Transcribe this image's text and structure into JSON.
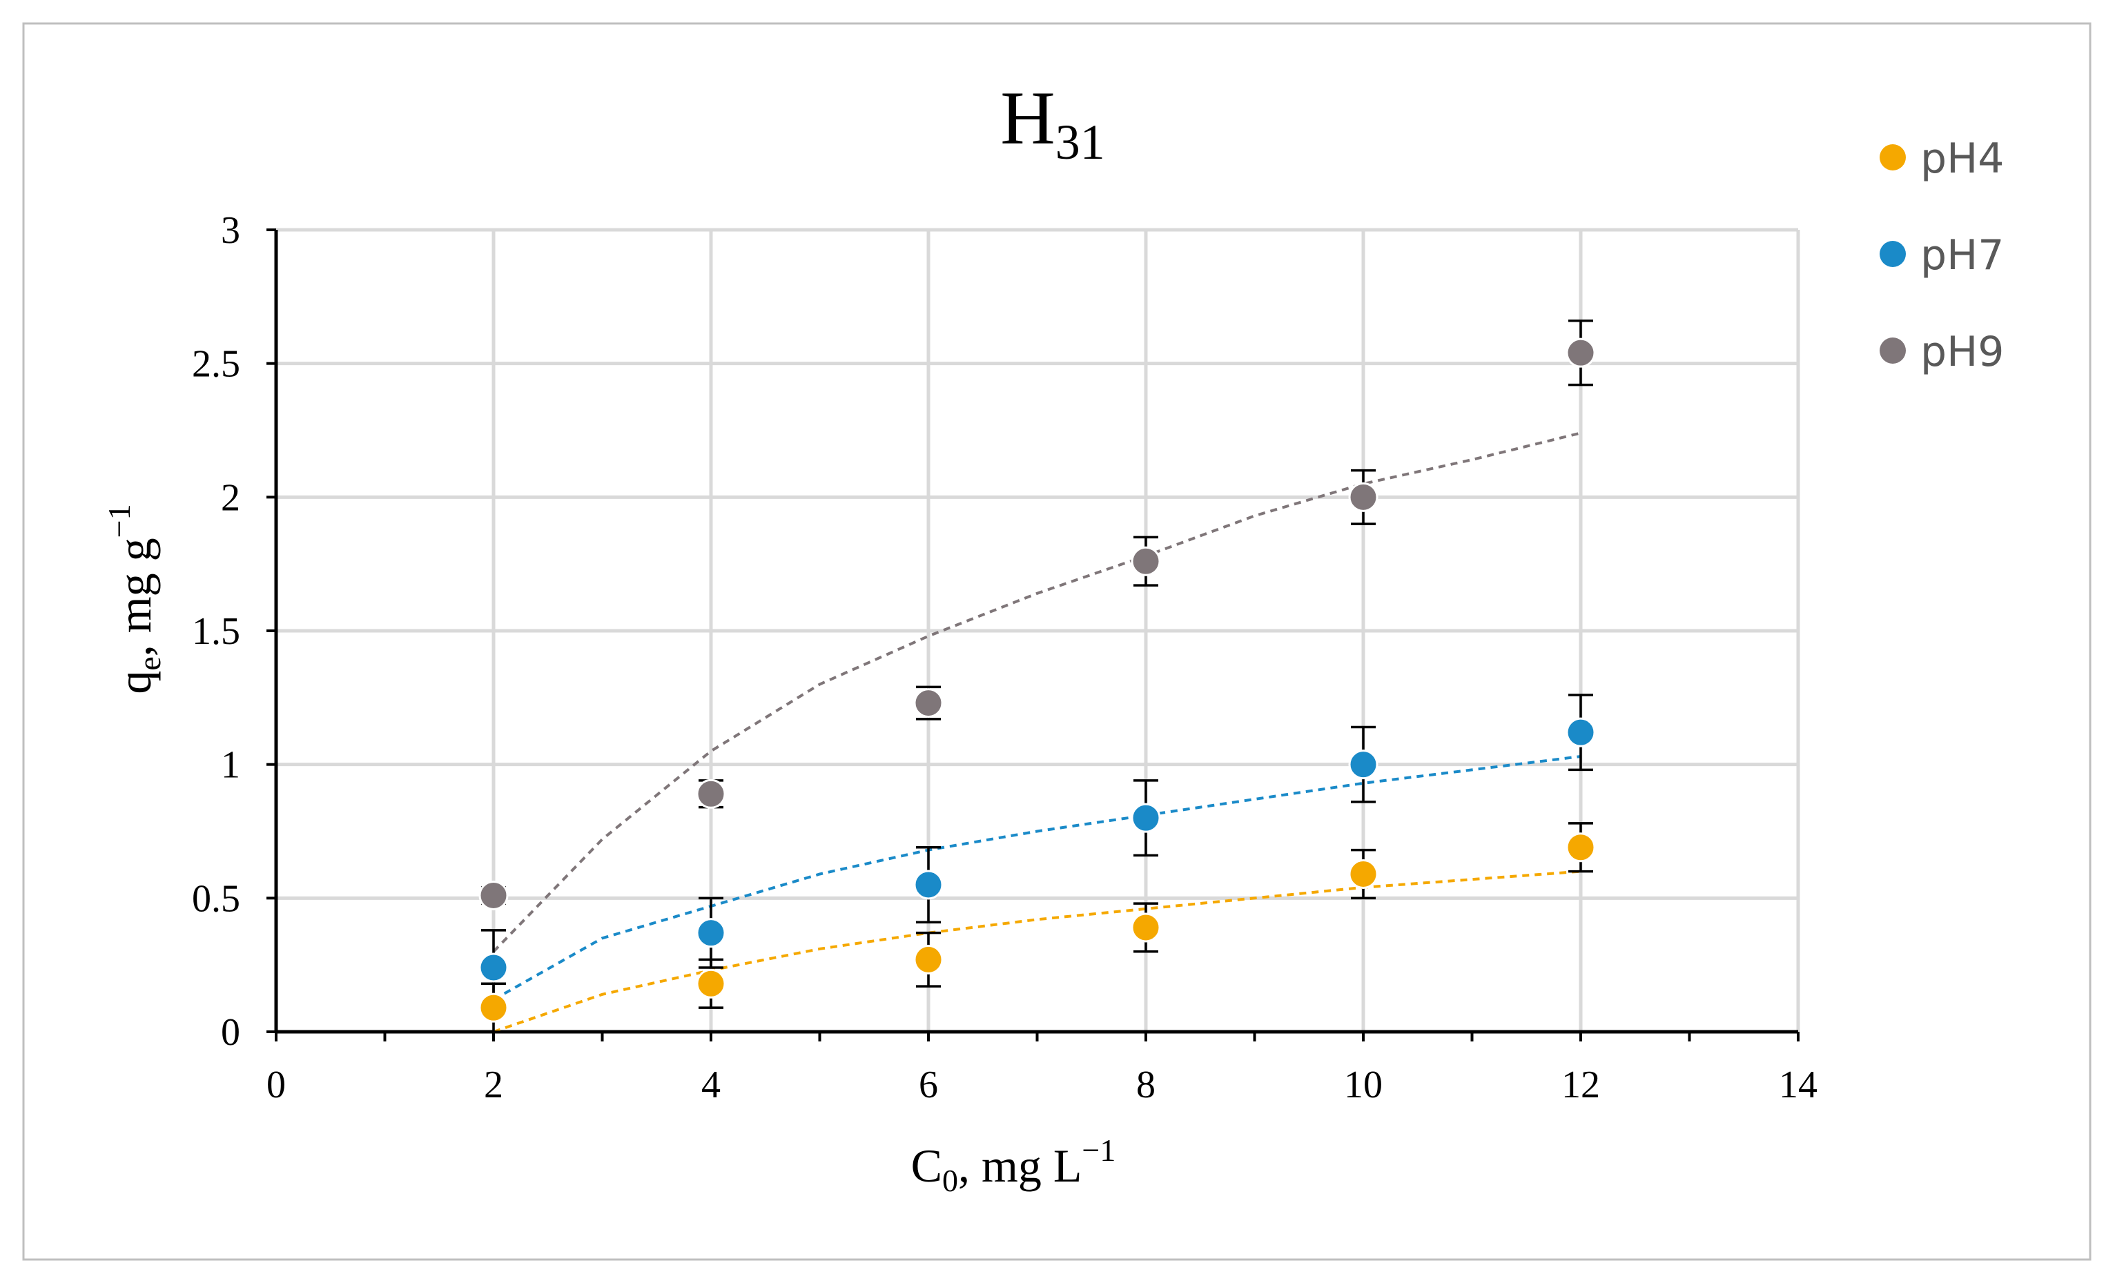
{
  "chart_data": {
    "type": "scatter",
    "title": "H",
    "title_sub": "31",
    "xlabel": "C",
    "xlabel_sub": "0",
    "xlabel_rest": ", mg L",
    "xlabel_sup": "−1",
    "ylabel": "q",
    "ylabel_sub": "e",
    "ylabel_rest": ", mg g",
    "ylabel_sup": "−1",
    "xlim": [
      0,
      14
    ],
    "ylim": [
      0,
      3
    ],
    "x_ticks": [
      0,
      2,
      4,
      6,
      8,
      10,
      12,
      14
    ],
    "y_ticks": [
      0,
      0.5,
      1,
      1.5,
      2,
      2.5,
      3
    ],
    "x_tick_labels": [
      "0",
      "2",
      "4",
      "6",
      "8",
      "10",
      "12",
      "14"
    ],
    "y_tick_labels": [
      "0",
      "0.5",
      "1",
      "1.5",
      "2",
      "2.5",
      "3"
    ],
    "grid": true,
    "legend_position": "right",
    "series": [
      {
        "name": "pH4",
        "color": "#F5A800",
        "x": [
          2,
          4,
          6,
          8,
          10,
          12
        ],
        "y": [
          0.09,
          0.18,
          0.27,
          0.39,
          0.59,
          0.69
        ],
        "err": [
          0.09,
          0.09,
          0.1,
          0.09,
          0.09,
          0.09
        ],
        "fit_x": [
          2,
          3,
          4,
          5,
          6,
          7,
          8,
          9,
          10,
          11,
          12
        ],
        "fit_y": [
          0.0,
          0.14,
          0.23,
          0.31,
          0.37,
          0.42,
          0.46,
          0.5,
          0.54,
          0.57,
          0.6
        ]
      },
      {
        "name": "pH7",
        "color": "#1A8AC8",
        "x": [
          2,
          4,
          6,
          8,
          10,
          12
        ],
        "y": [
          0.24,
          0.37,
          0.55,
          0.8,
          1.0,
          1.12
        ],
        "err": [
          0.14,
          0.13,
          0.14,
          0.14,
          0.14,
          0.14
        ],
        "fit_x": [
          2,
          3,
          4,
          5,
          6,
          7,
          8,
          9,
          10,
          11,
          12
        ],
        "fit_y": [
          0.12,
          0.35,
          0.47,
          0.59,
          0.68,
          0.75,
          0.81,
          0.87,
          0.93,
          0.98,
          1.03
        ]
      },
      {
        "name": "pH9",
        "color": "#7F7679",
        "x": [
          2,
          4,
          6,
          8,
          10,
          12
        ],
        "y": [
          0.51,
          0.89,
          1.23,
          1.76,
          2.0,
          2.54
        ],
        "err": [
          0.03,
          0.05,
          0.06,
          0.09,
          0.1,
          0.12
        ],
        "fit_x": [
          2,
          3,
          4,
          5,
          6,
          7,
          8,
          9,
          10,
          11,
          12
        ],
        "fit_y": [
          0.3,
          0.72,
          1.05,
          1.3,
          1.48,
          1.64,
          1.78,
          1.93,
          2.05,
          2.14,
          2.24
        ]
      }
    ]
  }
}
